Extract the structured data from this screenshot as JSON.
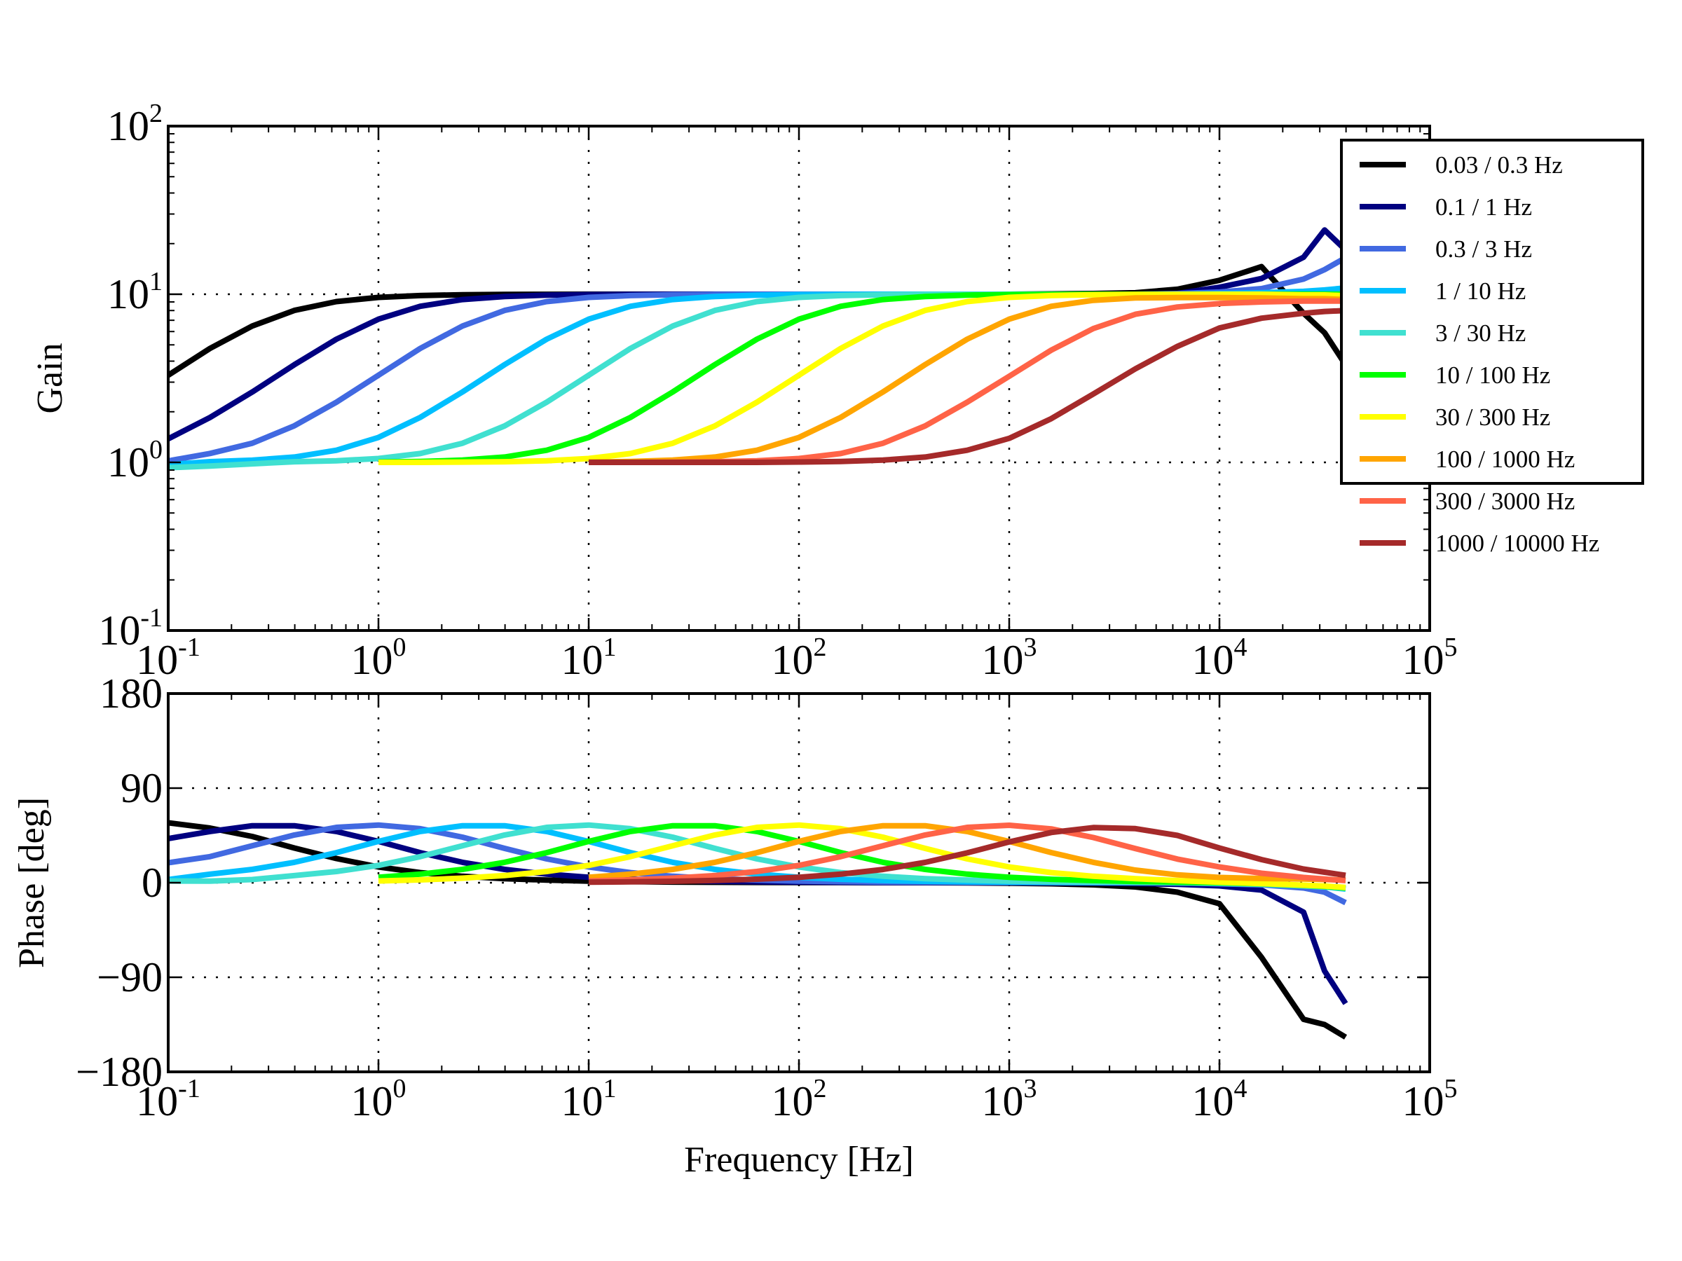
{
  "chart_data": [
    {
      "type": "line",
      "panel": "gain",
      "title": "",
      "xlabel": "",
      "ylabel": "Gain",
      "xscale": "log",
      "yscale": "log",
      "xlim": [
        0.1,
        100000
      ],
      "ylim": [
        0.1,
        100
      ],
      "x_tick_labels": [
        {
          "base": "10",
          "exp": "-1",
          "value": 0.1
        },
        {
          "base": "10",
          "exp": "0",
          "value": 1
        },
        {
          "base": "10",
          "exp": "1",
          "value": 10
        },
        {
          "base": "10",
          "exp": "2",
          "value": 100
        },
        {
          "base": "10",
          "exp": "3",
          "value": 1000
        },
        {
          "base": "10",
          "exp": "4",
          "value": 10000
        },
        {
          "base": "10",
          "exp": "5",
          "value": 100000
        }
      ],
      "y_tick_labels": [
        {
          "base": "10",
          "exp": "-1",
          "value": 0.1
        },
        {
          "base": "10",
          "exp": "0",
          "value": 1
        },
        {
          "base": "10",
          "exp": "1",
          "value": 10
        },
        {
          "base": "10",
          "exp": "2",
          "value": 100
        }
      ],
      "grid": true,
      "legend_position": "top-right"
    },
    {
      "type": "line",
      "panel": "phase",
      "title": "",
      "xlabel": "Frequency [Hz]",
      "ylabel": "Phase [deg]",
      "xscale": "log",
      "yscale": "linear",
      "xlim": [
        0.1,
        100000
      ],
      "ylim": [
        -180,
        180
      ],
      "x_tick_labels": [
        {
          "base": "10",
          "exp": "-1",
          "value": 0.1
        },
        {
          "base": "10",
          "exp": "0",
          "value": 1
        },
        {
          "base": "10",
          "exp": "1",
          "value": 10
        },
        {
          "base": "10",
          "exp": "2",
          "value": 100
        },
        {
          "base": "10",
          "exp": "3",
          "value": 1000
        },
        {
          "base": "10",
          "exp": "4",
          "value": 10000
        },
        {
          "base": "10",
          "exp": "5",
          "value": 100000
        }
      ],
      "y_tick_labels": [
        {
          "label": "180",
          "value": 180
        },
        {
          "label": "90",
          "value": 90
        },
        {
          "label": "0",
          "value": 0
        },
        {
          "label": "−90",
          "value": -90
        },
        {
          "label": "−180",
          "value": -180
        }
      ],
      "grid": true
    }
  ],
  "frequency_hz": [
    0.1,
    0.158,
    0.251,
    0.398,
    0.631,
    1,
    1.58,
    2.51,
    3.98,
    6.31,
    10,
    15.8,
    25.1,
    39.8,
    63.1,
    100,
    158,
    251,
    398,
    631,
    1000,
    1585,
    2512,
    3981,
    6310,
    10000,
    15849,
    25119,
    31623,
    39811
  ],
  "series": [
    {
      "name": "0.03 / 0.3 Hz",
      "color": "#000000",
      "gain": [
        3.3,
        4.76,
        6.47,
        8.01,
        9.04,
        9.58,
        9.82,
        9.93,
        9.97,
        9.99,
        10.0,
        10.0,
        10.0,
        10.0,
        10.0,
        10.0,
        10.0,
        10.0,
        10.0,
        10.0,
        10.0,
        10.05,
        10.1,
        10.2,
        10.7,
        12.1,
        14.6,
        7.7,
        5.9,
        3.8
      ],
      "phase_deg": [
        57,
        52,
        44,
        33,
        23,
        15,
        9.6,
        6.1,
        3.9,
        2.5,
        1.5,
        1.0,
        0.6,
        0.4,
        0.25,
        0.16,
        0.1,
        0.05,
        0,
        -0.1,
        -0.5,
        -1,
        -2,
        -4,
        -9,
        -20,
        -71,
        -130,
        -135,
        -147
      ]
    },
    {
      "name": "0.1 / 1 Hz",
      "color": "#000080",
      "gain": [
        1.38,
        1.85,
        2.62,
        3.81,
        5.4,
        7.11,
        8.48,
        9.3,
        9.7,
        9.88,
        9.95,
        9.98,
        10.0,
        10.0,
        10.0,
        10.0,
        10.0,
        10.0,
        10.0,
        10.0,
        10.0,
        10.0,
        10.0,
        10.0,
        10.1,
        11.0,
        12.4,
        16.6,
        24.1,
        18.3
      ],
      "phase_deg": [
        42,
        48.75,
        54.2,
        54.2,
        48.75,
        39.3,
        28.6,
        19.4,
        12.7,
        8.1,
        5.1,
        3.3,
        2.1,
        1.3,
        0.8,
        0.5,
        0.3,
        0.2,
        0.1,
        0.1,
        0,
        -0.2,
        -0.4,
        -0.8,
        -1.5,
        -3,
        -7,
        -28,
        -84,
        -115
      ]
    },
    {
      "name": "0.3 / 3 Hz",
      "color": "#4169E1",
      "gain": [
        1.02,
        1.13,
        1.3,
        1.65,
        2.28,
        3.3,
        4.76,
        6.47,
        8.01,
        9.04,
        9.58,
        9.82,
        9.93,
        9.97,
        9.99,
        10.0,
        10.0,
        10.0,
        10.0,
        10.0,
        10.0,
        10.0,
        10.0,
        10.0,
        10.1,
        10.3,
        10.8,
        12.3,
        14.0,
        16.5
      ],
      "phase_deg": [
        19,
        24.8,
        35.2,
        45.4,
        52.7,
        54.9,
        51.4,
        43.3,
        32.7,
        22.7,
        15.0,
        9.6,
        6.1,
        3.9,
        2.5,
        1.55,
        0.98,
        0.62,
        0.39,
        0.25,
        0.16,
        0.1,
        0.06,
        0.04,
        0,
        -1,
        -2,
        -5,
        -9,
        -19
      ]
    },
    {
      "name": "1 / 10 Hz",
      "color": "#00BFFF",
      "gain": [
        0.97,
        1.01,
        1.03,
        1.076,
        1.18,
        1.407,
        1.851,
        2.622,
        3.814,
        5.403,
        7.106,
        8.475,
        9.298,
        9.702,
        9.878,
        9.95,
        9.98,
        10.0,
        10.0,
        10.0,
        10.0,
        10.0,
        10.0,
        10.0,
        10.0,
        10.1,
        10.2,
        10.4,
        10.6,
        10.9
      ],
      "phase_deg": [
        3,
        8.1,
        12.7,
        19.4,
        28.6,
        39.3,
        48.75,
        54.2,
        54.2,
        48.75,
        39.29,
        28.64,
        19.42,
        12.66,
        8.1,
        5.14,
        3.26,
        2.06,
        1.3,
        0.82,
        0.52,
        0.33,
        0.21,
        0.1,
        0,
        -0.5,
        -1.5,
        -3,
        -4,
        -6
      ]
    },
    {
      "name": "3 / 30 Hz",
      "color": "#40E0D0",
      "gain": [
        0.93,
        0.95,
        0.98,
        1.009,
        1.022,
        1.054,
        1.129,
        1.3,
        1.647,
        2.28,
        3.3,
        4.76,
        6.47,
        8.01,
        9.04,
        9.58,
        9.82,
        9.93,
        9.97,
        9.99,
        10.0,
        10.0,
        10.0,
        10.0,
        10.0,
        10.0,
        10.0,
        10.0,
        10.0,
        10.0
      ],
      "phase_deg": [
        1.7,
        1.5,
        3,
        6.8,
        10.7,
        16.5,
        24.8,
        35.2,
        45.4,
        52.7,
        54.9,
        51.4,
        43.3,
        32.7,
        22.7,
        15.0,
        9.6,
        6.1,
        3.9,
        2.5,
        1.55,
        0.98,
        0.62,
        0.2,
        -0.2,
        -0.6,
        -1.5,
        -3,
        -4,
        -5.5
      ]
    },
    {
      "name": "10 / 100 Hz",
      "color": "#00FF00",
      "gain": [
        null,
        null,
        null,
        null,
        null,
        1.005,
        1.012,
        1.031,
        1.076,
        1.18,
        1.407,
        1.851,
        2.622,
        3.814,
        5.403,
        7.106,
        8.475,
        9.298,
        9.702,
        9.878,
        9.95,
        9.98,
        10.0,
        10.0,
        10.0,
        10.0,
        10.0,
        10.0,
        10.0,
        10.0
      ],
      "phase_deg": [
        null,
        null,
        null,
        null,
        null,
        5.1,
        8.1,
        12.7,
        19.4,
        28.6,
        39.3,
        48.75,
        54.2,
        54.2,
        48.75,
        39.29,
        28.64,
        19.42,
        12.66,
        8.1,
        5.14,
        3.26,
        2.06,
        1.2,
        0.6,
        0,
        -1,
        -2.5,
        -3.5,
        -5
      ]
    },
    {
      "name": "30 / 300 Hz",
      "color": "#FFFF00",
      "gain": [
        null,
        null,
        null,
        null,
        null,
        1.0,
        1.0,
        1.004,
        1.009,
        1.022,
        1.054,
        1.129,
        1.3,
        1.647,
        2.28,
        3.3,
        4.76,
        6.47,
        8.01,
        9.04,
        9.58,
        9.82,
        9.93,
        9.97,
        9.99,
        10.0,
        10.0,
        9.9,
        9.9,
        9.8
      ],
      "phase_deg": [
        null,
        null,
        null,
        null,
        null,
        1.7,
        2.7,
        4.3,
        6.8,
        10.7,
        16.5,
        24.8,
        35.2,
        45.4,
        52.7,
        54.9,
        51.4,
        43.3,
        32.7,
        22.7,
        15.0,
        9.6,
        6.1,
        3.9,
        2.0,
        0.5,
        -0.8,
        -2.3,
        -3.2,
        -4.5
      ]
    },
    {
      "name": "100 / 1000 Hz",
      "color": "#FFA500",
      "gain": [
        null,
        null,
        null,
        null,
        null,
        null,
        null,
        null,
        null,
        null,
        1.005,
        1.012,
        1.031,
        1.076,
        1.18,
        1.407,
        1.851,
        2.622,
        3.814,
        5.403,
        7.106,
        8.475,
        9.2,
        9.5,
        9.55,
        9.55,
        9.5,
        9.4,
        9.4,
        9.3
      ],
      "phase_deg": [
        null,
        null,
        null,
        null,
        null,
        null,
        null,
        null,
        null,
        null,
        5.1,
        8.1,
        12.7,
        19.4,
        28.6,
        39.3,
        48.75,
        54.2,
        54.2,
        48.75,
        39.29,
        28.64,
        19.4,
        12.0,
        7.5,
        5.0,
        4.0,
        3.5,
        3.0,
        2.5
      ]
    },
    {
      "name": "300 / 3000 Hz",
      "color": "#FF6347",
      "gain": [
        null,
        null,
        null,
        null,
        null,
        null,
        null,
        null,
        null,
        null,
        1.0,
        1.0,
        1.004,
        1.009,
        1.022,
        1.054,
        1.129,
        1.3,
        1.647,
        2.28,
        3.25,
        4.65,
        6.25,
        7.6,
        8.4,
        8.8,
        9.0,
        9.1,
        9.1,
        9.1
      ],
      "phase_deg": [
        null,
        null,
        null,
        null,
        null,
        null,
        null,
        null,
        null,
        null,
        1.7,
        2.7,
        4.3,
        6.8,
        10.7,
        16.5,
        24.8,
        35.2,
        45.4,
        52.7,
        54.7,
        51.2,
        43.0,
        32.5,
        22.5,
        15.0,
        9.0,
        5.0,
        3.5,
        2.0
      ]
    },
    {
      "name": "1000 / 10000 Hz",
      "color": "#A52A2A",
      "gain": [
        null,
        null,
        null,
        null,
        null,
        null,
        null,
        null,
        null,
        null,
        1.0,
        1.0,
        1.0,
        1.0,
        1.0,
        1.005,
        1.012,
        1.031,
        1.076,
        1.18,
        1.39,
        1.82,
        2.55,
        3.6,
        4.9,
        6.3,
        7.2,
        7.7,
        7.9,
        8.0
      ],
      "phase_deg": [
        null,
        null,
        null,
        null,
        null,
        null,
        null,
        null,
        null,
        null,
        0.5,
        0.8,
        1.3,
        2.1,
        3.3,
        5.1,
        8.1,
        12.6,
        19.3,
        28.4,
        38.8,
        47.8,
        52.5,
        51.5,
        45,
        33,
        22,
        13,
        10,
        7
      ]
    }
  ]
}
